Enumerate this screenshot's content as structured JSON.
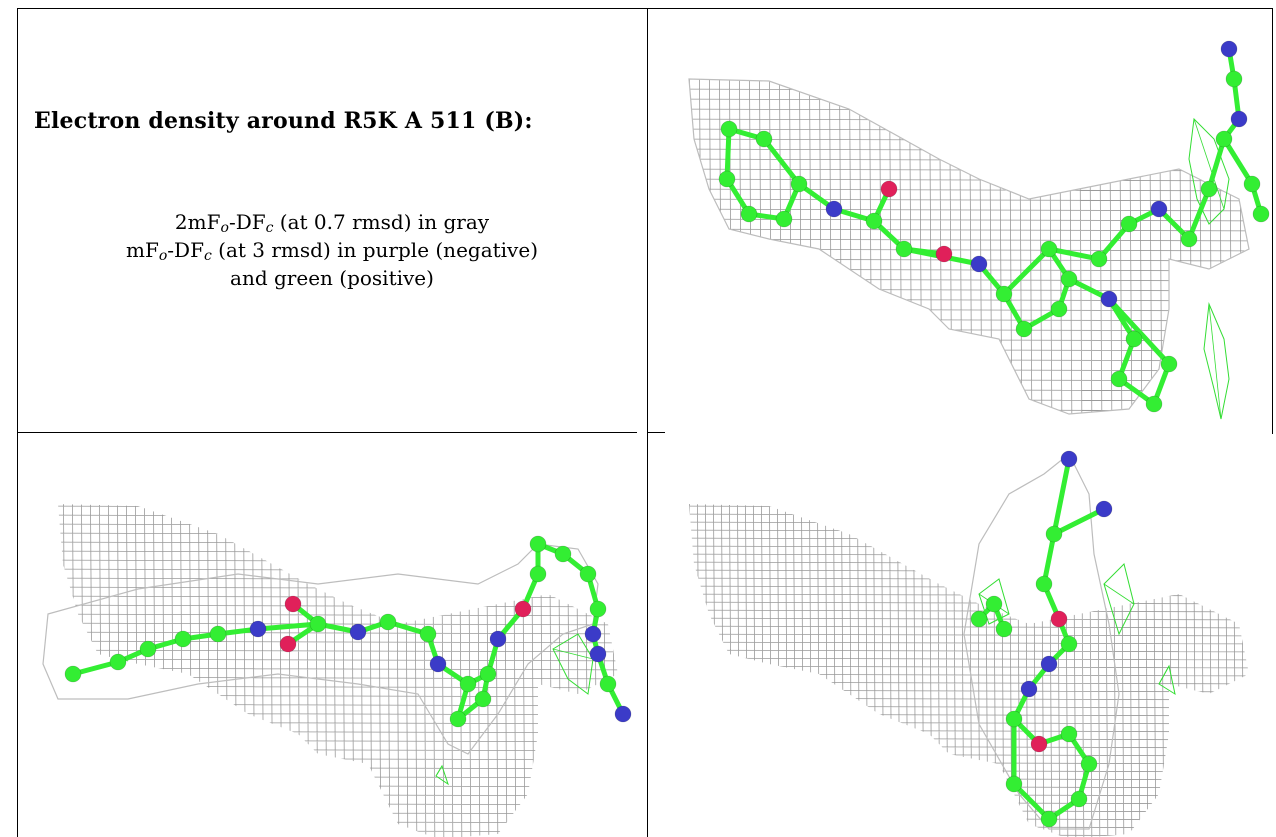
{
  "caption": {
    "title": "Electron density around R5K A 511 (B):",
    "line1": {
      "prefix": "2mF",
      "sub1": "o",
      "mid": "-DF",
      "sub2": "c",
      "suffix": " (at 0.7 rmsd) in gray"
    },
    "line2": {
      "prefix": "mF",
      "sub1": "o",
      "mid": "-DF",
      "sub2": "c",
      "suffix": " (at 3 rmsd) in purple (negative)"
    },
    "line3": "and green (positive)"
  },
  "colors": {
    "mesh": "#9a9a9a",
    "carbon": "#33ee33",
    "nitrogen": "#3b3bc8",
    "oxygen": "#e0205a",
    "positive_density": "#33dd33",
    "border": "#000000"
  },
  "panels": [
    {
      "name": "view-front"
    },
    {
      "name": "view-side"
    },
    {
      "name": "view-end"
    }
  ]
}
